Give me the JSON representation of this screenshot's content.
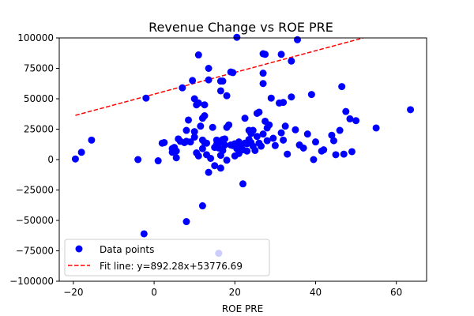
{
  "chart_data": {
    "type": "scatter",
    "title": "Revenue Change vs ROE PRE",
    "xlabel": "ROE PRE",
    "ylabel": "",
    "xlim": [
      -23.5,
      67.5
    ],
    "ylim": [
      -100000,
      100000
    ],
    "xticks": [
      -20,
      0,
      20,
      40,
      60
    ],
    "yticks": [
      -100000,
      -75000,
      -50000,
      -25000,
      0,
      25000,
      50000,
      75000,
      100000
    ],
    "grid": false,
    "legend": "lower-left",
    "series": [
      {
        "name": "Data points",
        "kind": "scatter",
        "color": "#0000ff",
        "points": [
          [
            -19.5,
            500
          ],
          [
            -18,
            6000
          ],
          [
            -15.5,
            16000
          ],
          [
            -4,
            0
          ],
          [
            -2.5,
            -61000
          ],
          [
            -2,
            50500
          ],
          [
            1,
            -1000
          ],
          [
            2,
            13500
          ],
          [
            2.5,
            14000
          ],
          [
            4.5,
            6000
          ],
          [
            4.5,
            9000
          ],
          [
            5,
            10000
          ],
          [
            5.5,
            7000
          ],
          [
            5.5,
            1500
          ],
          [
            6,
            17000
          ],
          [
            6.5,
            15000
          ],
          [
            7,
            59000
          ],
          [
            7.5,
            14000
          ],
          [
            8,
            15000
          ],
          [
            8,
            24000
          ],
          [
            8,
            -51000
          ],
          [
            8.5,
            32500
          ],
          [
            9,
            14500
          ],
          [
            9.5,
            65000
          ],
          [
            10,
            23000
          ],
          [
            10,
            18500
          ],
          [
            10,
            50000
          ],
          [
            10.5,
            5500
          ],
          [
            10.5,
            45000
          ],
          [
            11,
            86000
          ],
          [
            11,
            46500
          ],
          [
            11,
            3000
          ],
          [
            11.5,
            27500
          ],
          [
            12,
            34000
          ],
          [
            12,
            16000
          ],
          [
            12,
            -38000
          ],
          [
            12,
            9000
          ],
          [
            12.5,
            36000
          ],
          [
            12.5,
            45000
          ],
          [
            12.5,
            14000
          ],
          [
            13,
            13500
          ],
          [
            13,
            4000
          ],
          [
            13.5,
            75000
          ],
          [
            13.5,
            65500
          ],
          [
            13.5,
            -10500
          ],
          [
            14,
            1000
          ],
          [
            14.5,
            26500
          ],
          [
            15,
            10000
          ],
          [
            15,
            -5000
          ],
          [
            15.5,
            16000
          ],
          [
            15.5,
            12500
          ],
          [
            16,
            -77000
          ],
          [
            16,
            9500
          ],
          [
            16,
            14000
          ],
          [
            16.5,
            56500
          ],
          [
            16.5,
            3500
          ],
          [
            16.5,
            -7000
          ],
          [
            16.5,
            64500
          ],
          [
            17,
            64500
          ],
          [
            17,
            16500
          ],
          [
            17,
            7500
          ],
          [
            17.5,
            12000
          ],
          [
            17.5,
            17000
          ],
          [
            18,
            52500
          ],
          [
            18,
            -500
          ],
          [
            18,
            26500
          ],
          [
            18.5,
            28500
          ],
          [
            19,
            72000
          ],
          [
            19,
            12000
          ],
          [
            19.5,
            11500
          ],
          [
            19.5,
            71500
          ],
          [
            20,
            13000
          ],
          [
            20,
            3000
          ],
          [
            20.5,
            100500
          ],
          [
            20.5,
            9000
          ],
          [
            21,
            5000
          ],
          [
            21,
            14500
          ],
          [
            21.5,
            12500
          ],
          [
            22,
            8000
          ],
          [
            22,
            -20000
          ],
          [
            22.5,
            13500
          ],
          [
            22.5,
            34000
          ],
          [
            23,
            7000
          ],
          [
            23,
            13000
          ],
          [
            23.5,
            24000
          ],
          [
            23.5,
            16500
          ],
          [
            24,
            14000
          ],
          [
            24,
            21500
          ],
          [
            24.5,
            24000
          ],
          [
            24.5,
            11000
          ],
          [
            25,
            7500
          ],
          [
            25.5,
            38000
          ],
          [
            25.5,
            19000
          ],
          [
            26,
            13500
          ],
          [
            26,
            39000
          ],
          [
            26.5,
            11000
          ],
          [
            27,
            87000
          ],
          [
            27,
            71000
          ],
          [
            27,
            62500
          ],
          [
            27,
            21000
          ],
          [
            27.5,
            86500
          ],
          [
            27.5,
            31500
          ],
          [
            28,
            26000
          ],
          [
            28,
            15500
          ],
          [
            28.5,
            28500
          ],
          [
            29,
            50500
          ],
          [
            29.5,
            17500
          ],
          [
            30,
            11500
          ],
          [
            31,
            46500
          ],
          [
            31.5,
            86500
          ],
          [
            31.5,
            22000
          ],
          [
            32,
            47000
          ],
          [
            32,
            16000
          ],
          [
            32.5,
            27500
          ],
          [
            33,
            4500
          ],
          [
            34,
            51500
          ],
          [
            34,
            81000
          ],
          [
            35,
            24500
          ],
          [
            35.5,
            98500
          ],
          [
            36,
            12000
          ],
          [
            37,
            9500
          ],
          [
            38,
            21000
          ],
          [
            39,
            53500
          ],
          [
            39.5,
            0
          ],
          [
            40,
            14500
          ],
          [
            41.5,
            7000
          ],
          [
            42,
            8000
          ],
          [
            44,
            20000
          ],
          [
            44.5,
            15500
          ],
          [
            45,
            4000
          ],
          [
            46,
            24000
          ],
          [
            46.5,
            60000
          ],
          [
            47,
            4500
          ],
          [
            47.5,
            39500
          ],
          [
            48.5,
            33500
          ],
          [
            49,
            6500
          ],
          [
            50,
            32000
          ],
          [
            55,
            26000
          ],
          [
            63.5,
            41000
          ]
        ]
      },
      {
        "name": "Fit line: y=892.28x+53776.69",
        "kind": "line",
        "color": "#ff0000",
        "dash": "dashed",
        "slope": 892.28,
        "intercept": 53776.69,
        "x_range": [
          -19.5,
          63.5
        ]
      }
    ]
  }
}
